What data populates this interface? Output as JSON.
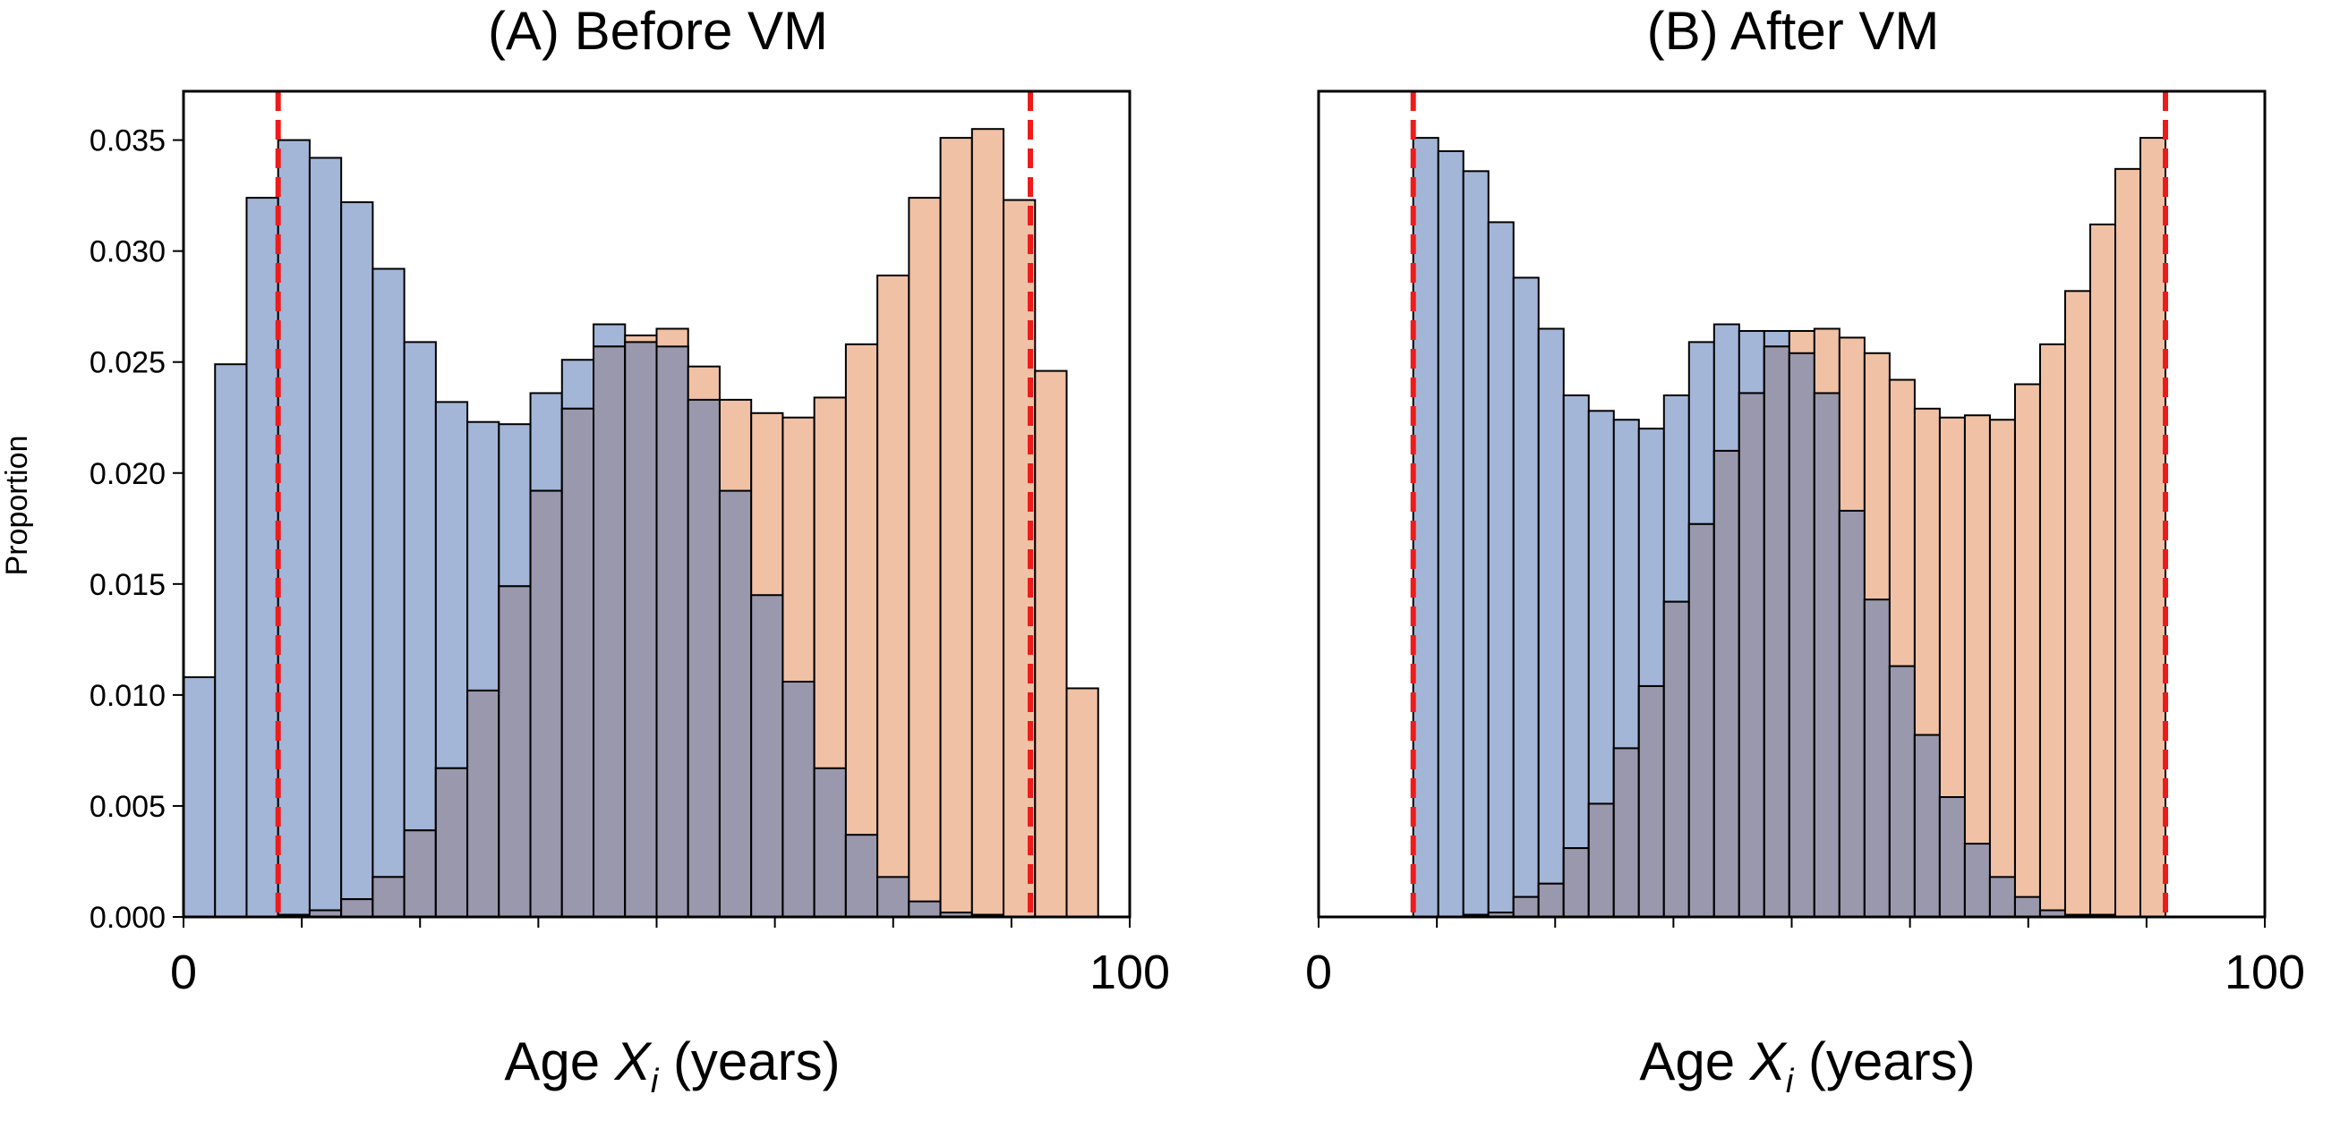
{
  "chart_data": [
    {
      "type": "bar",
      "title": "(A) Before VM",
      "xlabel": "Age X_i (years)",
      "xlabel_parts": {
        "prefix": "Age ",
        "var": "X",
        "sub": "i",
        "suffix": " (years)"
      },
      "ylabel": "Proportion",
      "xlim": [
        0,
        100
      ],
      "ylim": [
        0,
        0.0372
      ],
      "xticks": [
        0,
        100
      ],
      "minor_xticks": [
        12.5,
        25,
        37.5,
        50,
        62.5,
        75,
        87.5
      ],
      "yticks": [
        "0.000",
        "0.005",
        "0.010",
        "0.015",
        "0.020",
        "0.025",
        "0.030",
        "0.035"
      ],
      "show_yticks": true,
      "bin_edges_start": 0,
      "bin_width": 3.3333,
      "vlines": [
        10,
        89.5
      ],
      "series": [
        {
          "color": "#a3b6d8",
          "values": [
            0.0108,
            0.0249,
            0.0324,
            0.035,
            0.0342,
            0.0322,
            0.0292,
            0.0259,
            0.0232,
            0.0223,
            0.0222,
            0.0236,
            0.0251,
            0.0267,
            0.0259,
            0.0257,
            0.0233,
            0.0192,
            0.0145,
            0.0106,
            0.0067,
            0.0037,
            0.0018,
            0.0007,
            0.0002,
            0.0001,
            0,
            0,
            0,
            0
          ]
        },
        {
          "color": "#f0c1a5",
          "values": [
            0,
            0,
            0,
            0.0001,
            0.0003,
            0.0008,
            0.0018,
            0.0039,
            0.0067,
            0.0102,
            0.0149,
            0.0192,
            0.0229,
            0.0257,
            0.0262,
            0.0265,
            0.0248,
            0.0233,
            0.0227,
            0.0225,
            0.0234,
            0.0258,
            0.0289,
            0.0324,
            0.0351,
            0.0355,
            0.0323,
            0.0246,
            0.0103,
            0
          ]
        }
      ],
      "overlap_color": "#9a98ad"
    },
    {
      "type": "bar",
      "title": "(B) After VM",
      "xlabel": "Age X_i (years)",
      "xlabel_parts": {
        "prefix": "Age ",
        "var": "X",
        "sub": "i",
        "suffix": " (years)"
      },
      "ylabel": "",
      "xlim": [
        0,
        100
      ],
      "ylim": [
        0,
        0.0372
      ],
      "xticks": [
        0,
        100
      ],
      "minor_xticks": [
        12.5,
        25,
        37.5,
        50,
        62.5,
        75,
        87.5
      ],
      "yticks": [],
      "show_yticks": false,
      "bin_edges_start": 10,
      "bin_width": 2.65,
      "vlines": [
        10,
        89.5
      ],
      "series": [
        {
          "color": "#a3b6d8",
          "values": [
            0.0351,
            0.0345,
            0.0336,
            0.0313,
            0.0288,
            0.0265,
            0.0235,
            0.0228,
            0.0224,
            0.022,
            0.0235,
            0.0259,
            0.0267,
            0.0264,
            0.0264,
            0.0254,
            0.0236,
            0.0183,
            0.0143,
            0.0113,
            0.0082,
            0.0054,
            0.0033,
            0.0018,
            0.0009,
            0.0003,
            0.0001,
            0.0001,
            0,
            0
          ]
        },
        {
          "color": "#f0c1a5",
          "values": [
            0,
            0,
            0.0001,
            0.0002,
            0.0009,
            0.0015,
            0.0031,
            0.0051,
            0.0076,
            0.0104,
            0.0142,
            0.0177,
            0.021,
            0.0236,
            0.0257,
            0.0264,
            0.0265,
            0.0261,
            0.0254,
            0.0242,
            0.0229,
            0.0225,
            0.0226,
            0.0224,
            0.024,
            0.0258,
            0.0282,
            0.0312,
            0.0337,
            0.0351
          ]
        }
      ],
      "overlap_color": "#9a98ad"
    }
  ],
  "styles": {
    "vline_color": "#ee1b1b",
    "edge_color": "#000000"
  }
}
